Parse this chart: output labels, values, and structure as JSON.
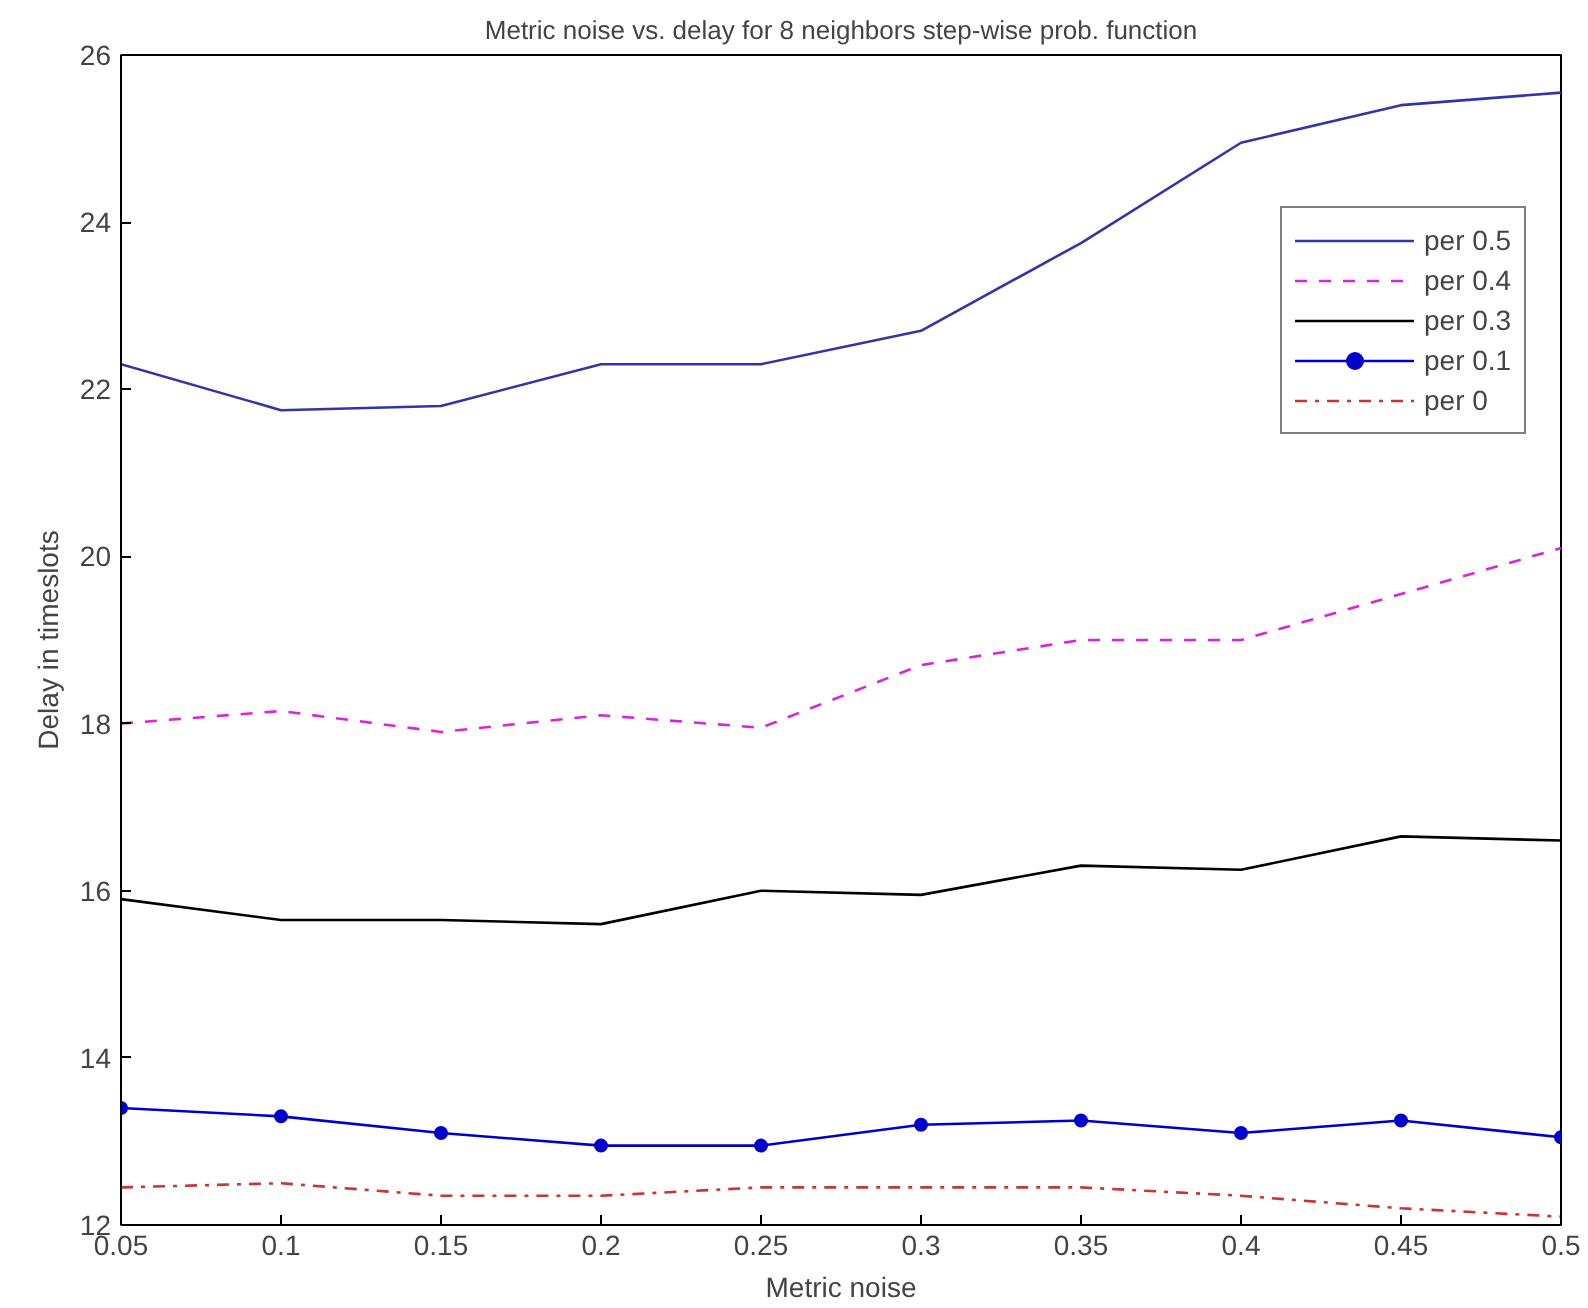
{
  "chart_data": {
    "type": "line",
    "title": "Metric noise vs. delay for 8 neighbors step-wise prob. function",
    "xlabel": "Metric noise",
    "ylabel": "Delay in timeslots",
    "x": [
      0.05,
      0.1,
      0.15,
      0.2,
      0.25,
      0.3,
      0.35,
      0.4,
      0.45,
      0.5
    ],
    "series": [
      {
        "name": "per 0.5",
        "color": "#3333aa",
        "line_style": "solid",
        "values": [
          22.3,
          21.75,
          21.8,
          22.3,
          22.3,
          22.7,
          23.75,
          24.95,
          25.4,
          25.55
        ]
      },
      {
        "name": "per 0.4",
        "color": "#dd22dd",
        "line_style": "dashed",
        "values": [
          18.0,
          18.15,
          17.9,
          18.1,
          17.95,
          18.7,
          19.0,
          19.0,
          19.55,
          20.1
        ]
      },
      {
        "name": "per 0.3",
        "color": "#000000",
        "line_style": "solid",
        "values": [
          15.9,
          15.65,
          15.65,
          15.6,
          16.0,
          15.95,
          16.3,
          16.25,
          16.65,
          16.6
        ]
      },
      {
        "name": "per 0.1",
        "color": "#0000cc",
        "line_style": "solid",
        "marker": "circle",
        "values": [
          13.4,
          13.3,
          13.1,
          12.95,
          12.95,
          13.2,
          13.25,
          13.1,
          13.25,
          13.05
        ]
      },
      {
        "name": "per 0",
        "color": "#cc3333",
        "line_style": "dashdot",
        "values": [
          12.45,
          12.5,
          12.35,
          12.35,
          12.45,
          12.45,
          12.45,
          12.35,
          12.2,
          12.1
        ]
      }
    ],
    "xlim": [
      0.05,
      0.5
    ],
    "ylim": [
      12,
      26
    ],
    "xticks": [
      0.05,
      0.1,
      0.15,
      0.2,
      0.25,
      0.3,
      0.35,
      0.4,
      0.45,
      0.5
    ],
    "yticks": [
      12,
      14,
      16,
      18,
      20,
      22,
      24,
      26
    ],
    "grid": false,
    "legend": "top right"
  }
}
